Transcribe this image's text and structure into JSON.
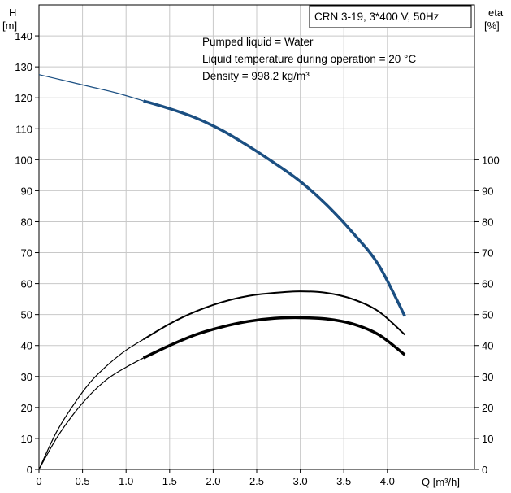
{
  "chart_data": {
    "type": "line",
    "title": "CRN 3-19, 3*400 V, 50Hz",
    "notes": [
      "Pumped liquid = Water",
      "Liquid temperature during operation = 20 °C",
      "Density = 998.2 kg/m³"
    ],
    "left_axis": {
      "label_top": "H",
      "label_unit": "[m]",
      "range": [
        0,
        150
      ],
      "ticks": [
        0,
        10,
        20,
        30,
        40,
        50,
        60,
        70,
        80,
        90,
        100,
        110,
        120,
        130,
        140
      ]
    },
    "right_axis": {
      "label_top": "eta",
      "label_unit": "[%]",
      "range": [
        0,
        150
      ],
      "ticks": [
        0,
        10,
        20,
        30,
        40,
        50,
        60,
        70,
        80,
        90,
        100
      ]
    },
    "x_axis": {
      "label": "Q [m³/h]",
      "range": [
        0,
        5.0
      ],
      "ticks": [
        0,
        0.5,
        1.0,
        1.5,
        2.0,
        2.5,
        3.0,
        3.5,
        4.0
      ],
      "tick_labels": [
        "0",
        "0.5",
        "1.0",
        "1.5",
        "2.0",
        "2.5",
        "3.0",
        "3.5",
        "4.0"
      ]
    },
    "grid": true,
    "series": [
      {
        "key": "head",
        "axis": "left",
        "color": "#1b4f82",
        "thin": {
          "x": [
            0,
            0.3,
            0.6,
            0.9,
            1.2
          ],
          "y": [
            127.5,
            125.5,
            123.5,
            121.5,
            119
          ]
        },
        "thick": {
          "x": [
            1.2,
            1.5,
            1.8,
            2.1,
            2.4,
            2.7,
            3.0,
            3.3,
            3.6,
            3.9,
            4.2
          ],
          "y": [
            119,
            116.5,
            113.5,
            109.5,
            104.5,
            99,
            93,
            85.5,
            76.5,
            66,
            49.5
          ]
        }
      },
      {
        "key": "efficiency-upper",
        "axis": "right",
        "color": "#000000",
        "thin": {
          "x": [
            0,
            0.2,
            0.4,
            0.6,
            0.8,
            1.0,
            1.2
          ],
          "y": [
            0,
            12,
            21,
            28.5,
            34,
            38.5,
            42
          ]
        },
        "thick": {
          "x": [
            1.2,
            1.5,
            1.8,
            2.1,
            2.4,
            2.7,
            3.0,
            3.3,
            3.6,
            3.9,
            4.2
          ],
          "y": [
            42,
            47,
            51,
            54,
            56,
            57,
            57.5,
            57,
            55,
            51,
            43.5
          ]
        }
      },
      {
        "key": "efficiency-lower",
        "axis": "right",
        "color": "#000000",
        "thin": {
          "x": [
            0,
            0.2,
            0.4,
            0.6,
            0.8,
            1.0,
            1.2
          ],
          "y": [
            0,
            10,
            18,
            24.5,
            29.5,
            33,
            36
          ]
        },
        "thick": {
          "x": [
            1.2,
            1.5,
            1.8,
            2.1,
            2.4,
            2.7,
            3.0,
            3.3,
            3.6,
            3.9,
            4.2
          ],
          "y": [
            36,
            40,
            43.5,
            46,
            47.8,
            48.8,
            49,
            48.6,
            47,
            43.5,
            37
          ]
        }
      }
    ]
  }
}
